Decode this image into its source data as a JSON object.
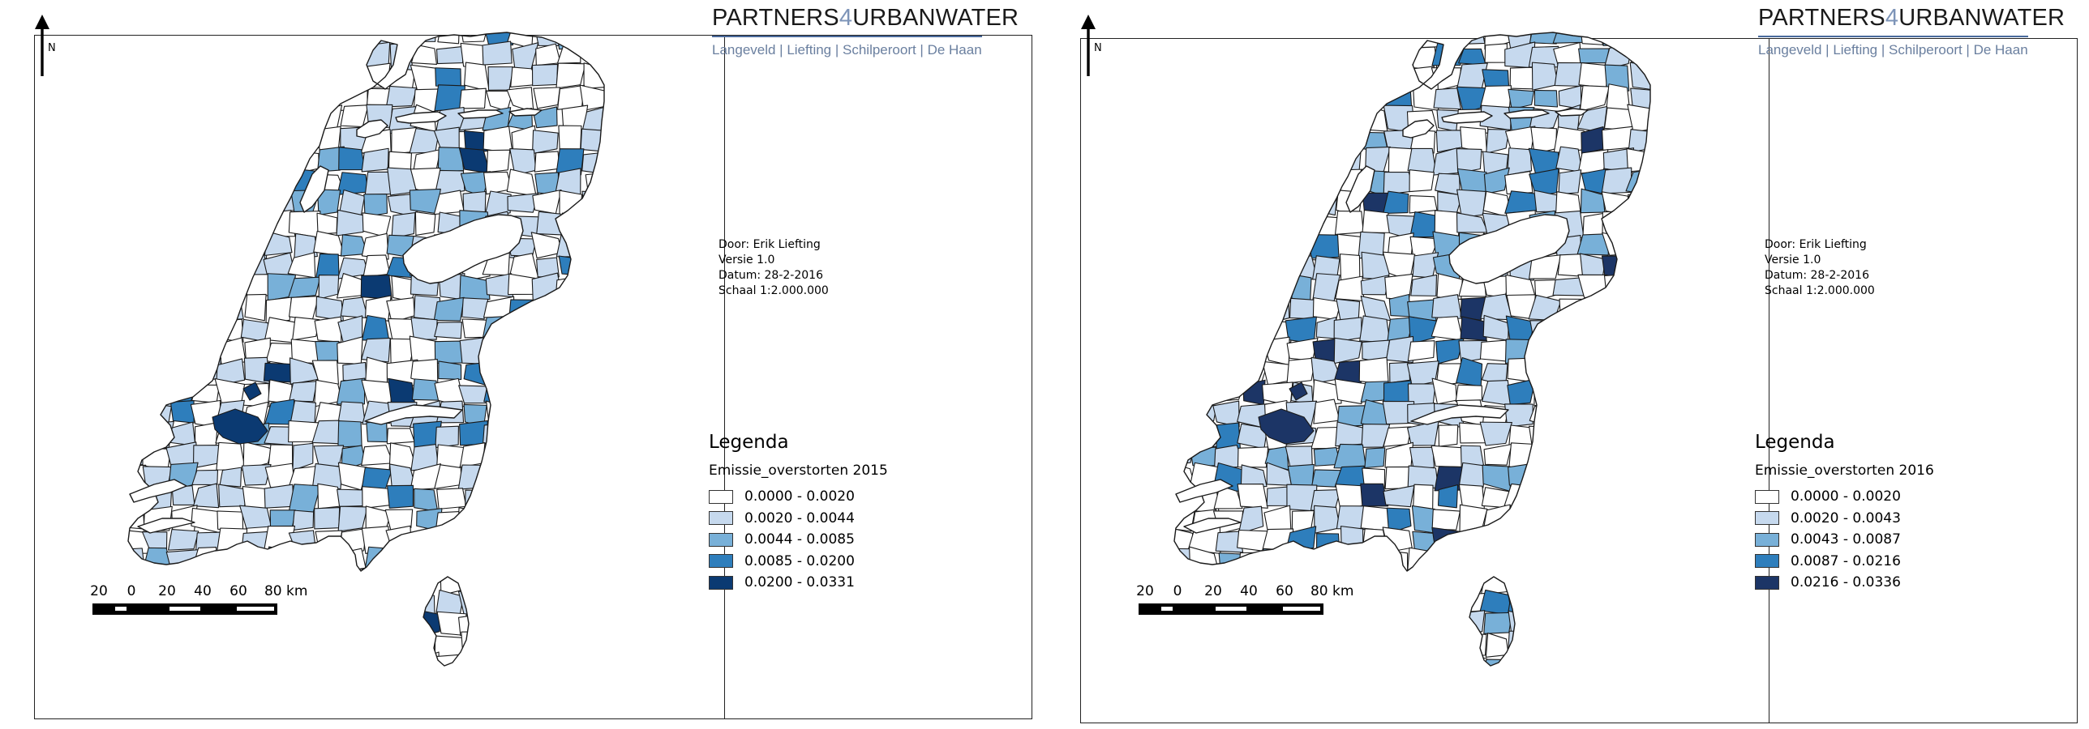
{
  "panels": [
    {
      "north_label": "N",
      "logo": {
        "title_a": "PARTNERS",
        "title_4": "4",
        "title_b": "URBANWATER",
        "subtitle": "Langeveld | Liefting | Schilperoort | De Haan"
      },
      "meta": {
        "author": "Door: Erik Liefting",
        "version": "Versie 1.0",
        "date": "Datum: 28-2-2016",
        "scale": "Schaal 1:2.000.000"
      },
      "legend": {
        "title": "Legenda",
        "layer": "Emissie_overstorten 2015",
        "classes": [
          {
            "label": "0.0000 - 0.0020",
            "color": "#ffffff"
          },
          {
            "label": "0.0020 - 0.0044",
            "color": "#c6d9ee"
          },
          {
            "label": "0.0044 - 0.0085",
            "color": "#78b0d8"
          },
          {
            "label": "0.0085 - 0.0200",
            "color": "#2e7ebc"
          },
          {
            "label": "0.0200 - 0.0331",
            "color": "#0b3a72"
          }
        ]
      },
      "scalebar": {
        "labels": [
          "20",
          "0",
          "20",
          "40",
          "60",
          "80 km"
        ]
      }
    },
    {
      "north_label": "N",
      "logo": {
        "title_a": "PARTNERS",
        "title_4": "4",
        "title_b": "URBANWATER",
        "subtitle": "Langeveld | Liefting | Schilperoort | De Haan"
      },
      "meta": {
        "author": "Door: Erik Liefting",
        "version": "Versie 1.0",
        "date": "Datum: 28-2-2016",
        "scale": "Schaal 1:2.000.000"
      },
      "legend": {
        "title": "Legenda",
        "layer": "Emissie_overstorten 2016",
        "classes": [
          {
            "label": "0.0000 - 0.0020",
            "color": "#ffffff"
          },
          {
            "label": "0.0020 - 0.0043",
            "color": "#c6d9ee"
          },
          {
            "label": "0.0043 - 0.0087",
            "color": "#78b0d8"
          },
          {
            "label": "0.0087 - 0.0216",
            "color": "#2e7ebc"
          },
          {
            "label": "0.0216 - 0.0336",
            "color": "#1c3566"
          }
        ]
      },
      "scalebar": {
        "labels": [
          "20",
          "0",
          "20",
          "40",
          "60",
          "80 km"
        ]
      }
    }
  ]
}
